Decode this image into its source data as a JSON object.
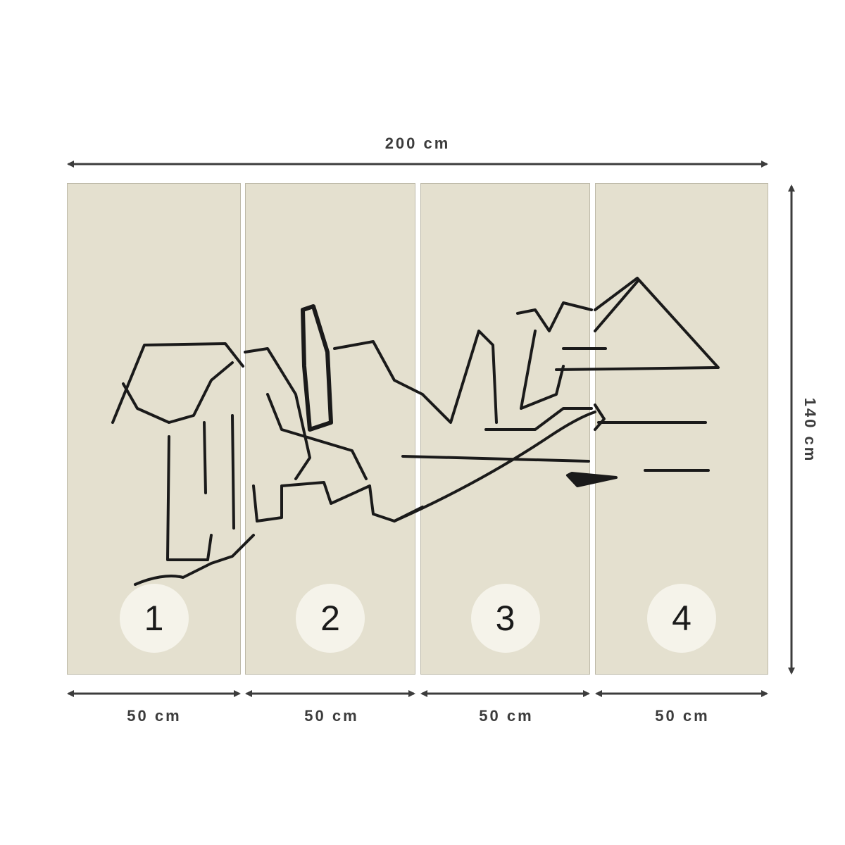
{
  "total_width_label": "200 cm",
  "total_height_label": "140 cm",
  "panels": [
    {
      "number": "1",
      "width_label": "50 cm"
    },
    {
      "number": "2",
      "width_label": "50 cm"
    },
    {
      "number": "3",
      "width_label": "50 cm"
    },
    {
      "number": "4",
      "width_label": "50 cm"
    }
  ],
  "colors": {
    "panel": "#e4e0cf",
    "badge": "#f5f3ea",
    "ink": "#1a1a1a",
    "dimension": "#3c3c3c"
  }
}
